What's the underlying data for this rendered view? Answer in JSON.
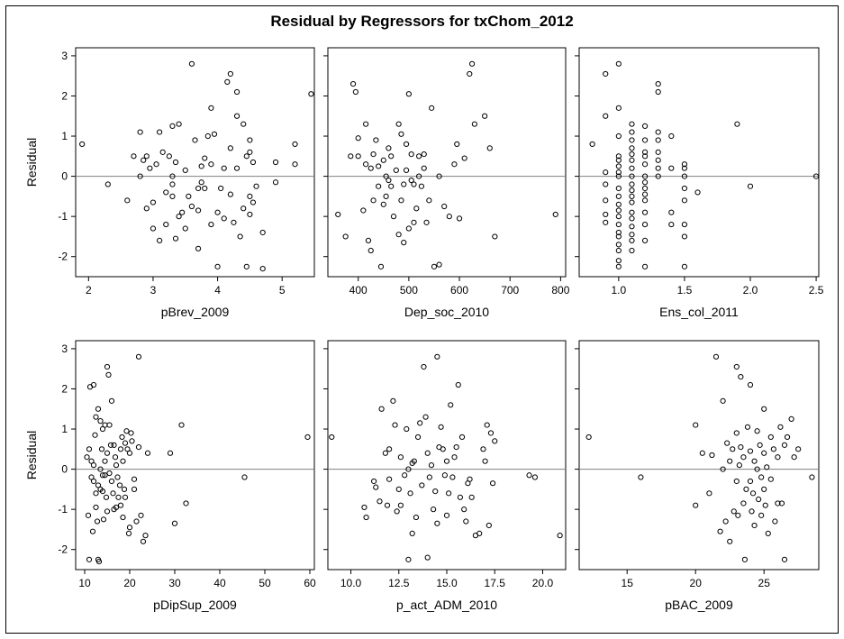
{
  "title": "Residual by Regressors for txChom_2012",
  "ylabel": "Residual",
  "yticks": [
    "-2",
    "-1",
    "0",
    "1",
    "2",
    "3"
  ],
  "chart_data": [
    {
      "type": "scatter",
      "xlabel": "pBrev_2009",
      "ylabel": "Residual",
      "xlim": [
        1.8,
        5.5
      ],
      "ylim": [
        -2.5,
        3.2
      ],
      "xticks": [
        2,
        3,
        4,
        5
      ],
      "reference_line_y": 0,
      "x": [
        1.9,
        2.3,
        2.6,
        2.7,
        2.8,
        2.8,
        2.85,
        2.9,
        2.9,
        2.95,
        3.0,
        3.0,
        3.05,
        3.1,
        3.1,
        3.15,
        3.2,
        3.2,
        3.25,
        3.3,
        3.3,
        3.3,
        3.3,
        3.35,
        3.35,
        3.4,
        3.4,
        3.45,
        3.5,
        3.5,
        3.55,
        3.6,
        3.6,
        3.65,
        3.7,
        3.7,
        3.7,
        3.75,
        3.75,
        3.8,
        3.8,
        3.85,
        3.9,
        3.9,
        3.9,
        3.95,
        4.0,
        4.0,
        4.05,
        4.1,
        4.1,
        4.15,
        4.2,
        4.2,
        4.2,
        4.25,
        4.3,
        4.3,
        4.3,
        4.35,
        4.4,
        4.4,
        4.45,
        4.45,
        4.5,
        4.5,
        4.5,
        4.5,
        4.55,
        4.55,
        4.6,
        4.7,
        4.7,
        4.9,
        4.9,
        5.2,
        5.2,
        5.45
      ],
      "y": [
        0.8,
        -0.2,
        -0.6,
        0.5,
        1.1,
        0.0,
        0.4,
        0.5,
        -0.8,
        0.2,
        -1.3,
        -0.65,
        0.3,
        1.1,
        -1.6,
        0.6,
        -1.2,
        -0.4,
        0.5,
        1.25,
        -0.2,
        0.0,
        -0.5,
        -1.55,
        0.35,
        1.3,
        -1.0,
        -0.9,
        -1.3,
        0.15,
        -0.5,
        2.8,
        -0.75,
        0.9,
        -0.3,
        -0.85,
        -1.8,
        0.25,
        -0.15,
        0.45,
        -0.3,
        1.0,
        1.7,
        0.3,
        -1.2,
        1.05,
        -0.9,
        -2.25,
        -0.3,
        0.2,
        -1.05,
        2.35,
        2.55,
        0.7,
        -0.45,
        -1.15,
        1.5,
        2.1,
        0.2,
        -1.5,
        -0.8,
        1.3,
        -2.25,
        0.5,
        0.9,
        0.6,
        -0.95,
        -0.5,
        -0.65,
        0.35,
        -0.25,
        -2.3,
        -1.4,
        0.35,
        -0.15,
        0.8,
        0.3,
        2.05
      ]
    },
    {
      "type": "scatter",
      "xlabel": "Dep_soc_2010",
      "ylabel": "",
      "xlim": [
        340,
        810
      ],
      "ylim": [
        -2.5,
        3.2
      ],
      "xticks": [
        400,
        500,
        600,
        700,
        800
      ],
      "reference_line_y": 0,
      "x": [
        360,
        375,
        385,
        390,
        395,
        400,
        400,
        410,
        415,
        415,
        420,
        425,
        425,
        430,
        430,
        435,
        440,
        440,
        445,
        450,
        450,
        455,
        455,
        460,
        460,
        465,
        465,
        470,
        475,
        480,
        480,
        485,
        485,
        490,
        490,
        495,
        495,
        500,
        500,
        505,
        505,
        510,
        510,
        515,
        520,
        520,
        525,
        530,
        530,
        535,
        540,
        545,
        550,
        560,
        560,
        570,
        580,
        590,
        595,
        600,
        610,
        620,
        625,
        630,
        650,
        660,
        670,
        790
      ],
      "y": [
        -0.95,
        -1.5,
        0.5,
        2.3,
        2.1,
        0.95,
        0.5,
        -0.85,
        1.3,
        0.3,
        -1.6,
        -1.85,
        0.2,
        0.55,
        -0.6,
        0.9,
        0.25,
        -0.25,
        -2.25,
        -0.7,
        0.4,
        -0.5,
        0.0,
        0.7,
        -0.1,
        -0.25,
        0.5,
        -1.0,
        0.15,
        1.3,
        -1.45,
        -0.6,
        1.05,
        -1.65,
        -0.2,
        0.15,
        0.8,
        2.05,
        -1.3,
        -0.1,
        0.55,
        -0.2,
        -1.15,
        -0.8,
        0.5,
        0.0,
        -0.25,
        0.2,
        0.55,
        -1.15,
        -0.6,
        1.7,
        -2.25,
        -2.2,
        0.0,
        -0.75,
        -1.0,
        0.3,
        0.8,
        -1.05,
        0.45,
        2.55,
        2.8,
        1.3,
        1.5,
        0.7,
        -1.5,
        -0.95
      ]
    },
    {
      "type": "scatter",
      "xlabel": "Ens_col_2011",
      "ylabel": "",
      "xlim": [
        0.7,
        2.52
      ],
      "ylim": [
        -2.5,
        3.2
      ],
      "xticks": [
        1.0,
        1.5,
        2.0,
        2.5
      ],
      "reference_line_y": 0,
      "x": [
        0.8,
        0.9,
        0.9,
        0.9,
        0.9,
        0.9,
        0.9,
        0.9,
        1.0,
        1.0,
        1.0,
        1.0,
        1.0,
        1.0,
        1.0,
        1.0,
        1.0,
        1.0,
        1.0,
        1.0,
        1.0,
        1.0,
        1.0,
        1.0,
        1.0,
        1.0,
        1.0,
        1.0,
        1.1,
        1.1,
        1.1,
        1.1,
        1.1,
        1.1,
        1.1,
        1.1,
        1.1,
        1.1,
        1.1,
        1.1,
        1.1,
        1.1,
        1.1,
        1.1,
        1.1,
        1.1,
        1.2,
        1.2,
        1.2,
        1.2,
        1.2,
        1.2,
        1.2,
        1.2,
        1.2,
        1.2,
        1.2,
        1.2,
        1.2,
        1.2,
        1.3,
        1.3,
        1.3,
        1.3,
        1.3,
        1.3,
        1.3,
        1.3,
        1.4,
        1.4,
        1.4,
        1.4,
        1.5,
        1.5,
        1.5,
        1.5,
        1.5,
        1.5,
        1.5,
        1.5,
        1.6,
        1.9,
        2.0,
        2.5
      ],
      "y": [
        0.8,
        2.55,
        1.5,
        0.1,
        -0.2,
        -0.6,
        -0.95,
        -1.15,
        2.8,
        1.7,
        1.0,
        0.5,
        0.4,
        0.25,
        0.1,
        0.0,
        -0.3,
        -0.5,
        -0.7,
        -0.85,
        -1.0,
        -1.2,
        -1.4,
        -1.5,
        -1.7,
        -1.85,
        -2.1,
        -2.25,
        1.3,
        1.1,
        0.9,
        0.7,
        0.55,
        0.4,
        0.2,
        0.0,
        -0.2,
        -0.35,
        -0.5,
        -0.65,
        -0.9,
        -1.05,
        -1.25,
        -1.45,
        -1.6,
        -1.85,
        1.25,
        0.9,
        0.6,
        0.5,
        0.3,
        0.0,
        -0.15,
        -0.3,
        -0.45,
        -0.6,
        -0.9,
        -1.2,
        -1.6,
        -2.25,
        2.3,
        2.1,
        1.1,
        0.9,
        0.6,
        0.4,
        0.2,
        0.0,
        1.0,
        0.2,
        -0.9,
        -1.2,
        0.3,
        0.2,
        0.0,
        -0.3,
        -0.6,
        -1.2,
        -1.5,
        -2.25,
        -0.4,
        1.3,
        -0.25,
        0.0
      ]
    },
    {
      "type": "scatter",
      "xlabel": "pDipSup_2009",
      "ylabel": "Residual",
      "xlim": [
        8,
        61
      ],
      "ylim": [
        -2.5,
        3.2
      ],
      "xticks": [
        10,
        20,
        30,
        40,
        50,
        60
      ],
      "reference_line_y": 0,
      "x": [
        10.5,
        10.8,
        11.0,
        11.0,
        11.2,
        11.5,
        11.5,
        11.8,
        12.0,
        12.0,
        12.0,
        12.3,
        12.5,
        12.5,
        12.5,
        12.8,
        13.0,
        13.0,
        13.0,
        13.2,
        13.5,
        13.5,
        13.5,
        13.8,
        14.0,
        14.0,
        14.0,
        14.2,
        14.5,
        14.5,
        14.5,
        14.8,
        15.0,
        15.0,
        15.0,
        15.3,
        15.5,
        15.5,
        15.8,
        16.0,
        16.0,
        16.3,
        16.5,
        16.5,
        16.8,
        17.0,
        17.0,
        17.3,
        17.5,
        17.8,
        18.0,
        18.0,
        18.3,
        18.5,
        18.5,
        18.8,
        19.0,
        19.0,
        19.3,
        19.5,
        19.8,
        20.0,
        20.0,
        20.3,
        20.5,
        21.0,
        21.0,
        21.5,
        22.0,
        22.0,
        22.5,
        23.0,
        23.5,
        24.0,
        29.0,
        30.0,
        31.5,
        32.5,
        45.5,
        59.5
      ],
      "y": [
        0.3,
        -1.15,
        0.5,
        -2.25,
        2.05,
        0.2,
        -0.2,
        -1.55,
        2.1,
        0.1,
        -0.3,
        0.85,
        1.3,
        -0.6,
        -0.95,
        -1.3,
        1.5,
        -0.4,
        -2.25,
        -2.3,
        1.2,
        0.0,
        -0.5,
        0.5,
        1.0,
        -0.15,
        -0.55,
        -1.25,
        1.1,
        0.2,
        -0.15,
        -0.7,
        2.55,
        0.4,
        -1.05,
        2.35,
        1.1,
        -0.1,
        0.6,
        1.7,
        -0.3,
        -0.6,
        0.6,
        -1.0,
        0.3,
        0.1,
        -0.95,
        -0.2,
        -0.7,
        -0.4,
        0.5,
        -0.9,
        0.8,
        -1.2,
        0.2,
        -0.5,
        -0.7,
        0.65,
        0.95,
        0.5,
        -1.6,
        0.4,
        -1.45,
        0.9,
        0.7,
        -0.25,
        -0.5,
        -1.3,
        2.8,
        0.55,
        -1.15,
        -1.8,
        -1.65,
        0.4,
        0.4,
        -1.35,
        1.1,
        -0.85,
        -0.2,
        0.8
      ]
    },
    {
      "type": "scatter",
      "xlabel": "p_act_ADM_2010",
      "ylabel": "",
      "xlim": [
        8.8,
        21.2
      ],
      "ylim": [
        -2.5,
        3.2
      ],
      "xticks": [
        10.0,
        12.5,
        15.0,
        17.5,
        20.0
      ],
      "reference_line_y": 0,
      "x": [
        9.0,
        10.7,
        10.8,
        11.2,
        11.3,
        11.5,
        11.6,
        11.8,
        11.9,
        12.0,
        12.0,
        12.2,
        12.3,
        12.4,
        12.5,
        12.6,
        12.6,
        12.8,
        12.9,
        13.0,
        13.0,
        13.1,
        13.2,
        13.2,
        13.3,
        13.4,
        13.5,
        13.6,
        13.7,
        13.8,
        13.9,
        14.0,
        14.0,
        14.1,
        14.2,
        14.3,
        14.4,
        14.5,
        14.5,
        14.6,
        14.7,
        14.8,
        14.9,
        15.0,
        15.0,
        15.1,
        15.2,
        15.3,
        15.4,
        15.5,
        15.6,
        15.7,
        15.8,
        15.9,
        16.0,
        16.1,
        16.2,
        16.3,
        16.5,
        16.7,
        16.9,
        17.0,
        17.1,
        17.2,
        17.3,
        17.4,
        17.5,
        19.3,
        19.6,
        20.9
      ],
      "y": [
        0.8,
        -0.95,
        -1.2,
        -0.3,
        -0.45,
        -0.8,
        1.5,
        0.4,
        -0.9,
        -0.25,
        0.5,
        1.7,
        1.1,
        -1.05,
        -0.5,
        0.3,
        -0.9,
        -0.15,
        1.0,
        0.0,
        -2.25,
        -0.6,
        0.15,
        -1.6,
        0.2,
        -1.2,
        0.8,
        1.15,
        -0.4,
        2.55,
        1.3,
        0.4,
        -2.2,
        -0.2,
        0.1,
        -1.0,
        -0.55,
        2.8,
        -1.35,
        0.55,
        1.05,
        0.5,
        -0.15,
        0.2,
        -1.15,
        -0.6,
        1.6,
        -0.2,
        0.3,
        0.55,
        2.1,
        -0.7,
        0.8,
        -1.0,
        -1.3,
        -0.35,
        -0.25,
        -0.7,
        -1.65,
        -1.6,
        0.5,
        0.2,
        1.1,
        -1.4,
        0.9,
        -0.35,
        0.7,
        -0.15,
        -0.2,
        -1.65
      ]
    },
    {
      "type": "scatter",
      "xlabel": "pBAC_2009",
      "ylabel": "",
      "xlim": [
        11.5,
        29
      ],
      "ylim": [
        -2.5,
        3.2
      ],
      "xticks": [
        15,
        20,
        25
      ],
      "reference_line_y": 0,
      "x": [
        12.2,
        16.0,
        20.0,
        20.0,
        20.5,
        21.0,
        21.2,
        21.5,
        21.8,
        22.0,
        22.0,
        22.2,
        22.3,
        22.5,
        22.5,
        22.7,
        22.8,
        23.0,
        23.0,
        23.0,
        23.1,
        23.2,
        23.3,
        23.3,
        23.5,
        23.5,
        23.6,
        23.7,
        23.8,
        24.0,
        24.0,
        24.0,
        24.1,
        24.2,
        24.3,
        24.3,
        24.5,
        24.5,
        24.6,
        24.7,
        24.8,
        24.8,
        25.0,
        25.0,
        25.0,
        25.1,
        25.2,
        25.3,
        25.5,
        25.5,
        25.7,
        25.8,
        26.0,
        26.0,
        26.2,
        26.3,
        26.5,
        26.5,
        26.7,
        27.0,
        27.2,
        27.5,
        28.5
      ],
      "y": [
        0.8,
        -0.2,
        -0.9,
        1.1,
        0.4,
        -0.6,
        0.35,
        2.8,
        -1.55,
        1.7,
        0.0,
        -1.3,
        0.65,
        -1.8,
        0.2,
        0.5,
        -1.05,
        2.55,
        0.9,
        -0.3,
        -1.15,
        0.1,
        2.3,
        0.55,
        -0.85,
        0.3,
        -2.25,
        -0.5,
        1.05,
        2.1,
        0.45,
        -0.3,
        -1.05,
        -0.6,
        0.2,
        -1.4,
        0.95,
        0.0,
        -0.75,
        0.6,
        -0.2,
        -1.15,
        1.5,
        0.4,
        -0.5,
        -0.9,
        0.05,
        -1.6,
        0.8,
        -0.25,
        0.5,
        -1.3,
        0.3,
        -0.85,
        1.05,
        -0.85,
        0.6,
        -2.25,
        0.8,
        1.25,
        0.3,
        0.5,
        -0.2
      ]
    }
  ]
}
